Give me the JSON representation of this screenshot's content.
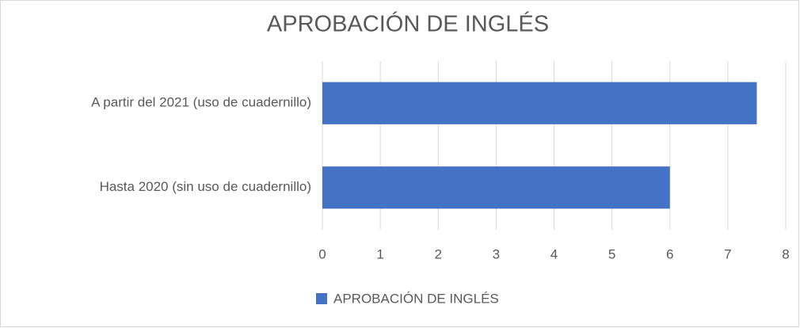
{
  "chart_data": {
    "type": "bar",
    "orientation": "horizontal",
    "title": "APROBACIÓN DE INGLÉS",
    "categories": [
      "A partir del 2021 (uso de cuadernillo)",
      "Hasta 2020 (sin uso de cuadernillo)"
    ],
    "series": [
      {
        "name": "APROBACIÓN DE INGLÉS",
        "color": "#4472c4",
        "values": [
          7.5,
          6
        ]
      }
    ],
    "xlim": [
      0,
      8
    ],
    "xticks": [
      0,
      1,
      2,
      3,
      4,
      5,
      6,
      7,
      8
    ],
    "grid": true,
    "legend": "bottom"
  }
}
